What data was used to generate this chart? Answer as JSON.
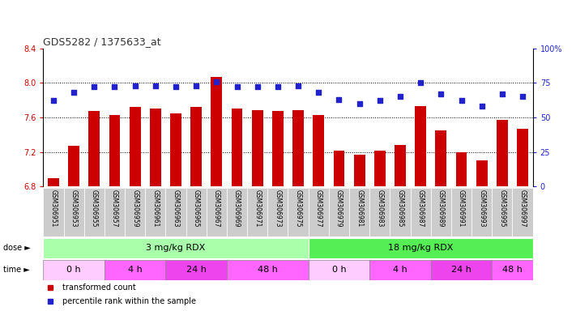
{
  "title": "GDS5282 / 1375633_at",
  "samples": [
    "GSM306951",
    "GSM306953",
    "GSM306955",
    "GSM306957",
    "GSM306959",
    "GSM306961",
    "GSM306963",
    "GSM306965",
    "GSM306967",
    "GSM306969",
    "GSM306971",
    "GSM306973",
    "GSM306975",
    "GSM306977",
    "GSM306979",
    "GSM306981",
    "GSM306983",
    "GSM306985",
    "GSM306987",
    "GSM306989",
    "GSM306991",
    "GSM306993",
    "GSM306995",
    "GSM306997"
  ],
  "bar_values": [
    6.9,
    7.27,
    7.67,
    7.63,
    7.72,
    7.7,
    7.65,
    7.72,
    8.07,
    7.7,
    7.68,
    7.67,
    7.68,
    7.63,
    7.22,
    7.17,
    7.22,
    7.28,
    7.73,
    7.45,
    7.2,
    7.1,
    7.57,
    7.47
  ],
  "percentile_values": [
    62,
    68,
    72,
    72,
    73,
    73,
    72,
    73,
    76,
    72,
    72,
    72,
    73,
    68,
    63,
    60,
    62,
    65,
    75,
    67,
    62,
    58,
    67,
    65
  ],
  "ymin": 6.8,
  "ymax": 8.4,
  "yticks_left": [
    6.8,
    7.2,
    7.6,
    8.0,
    8.4
  ],
  "yticks_right": [
    0,
    25,
    50,
    75,
    100
  ],
  "ytick_labels_right": [
    "0",
    "25",
    "50",
    "75",
    "100%"
  ],
  "bar_color": "#cc0000",
  "dot_color": "#2222cc",
  "dose_groups": [
    {
      "label": "3 mg/kg RDX",
      "start": 0,
      "end": 12,
      "color": "#aaffaa"
    },
    {
      "label": "18 mg/kg RDX",
      "start": 13,
      "end": 23,
      "color": "#55ee55"
    }
  ],
  "time_groups": [
    {
      "label": "0 h",
      "start": 0,
      "end": 2,
      "color": "#ffccff"
    },
    {
      "label": "4 h",
      "start": 3,
      "end": 5,
      "color": "#ff66ff"
    },
    {
      "label": "24 h",
      "start": 6,
      "end": 8,
      "color": "#ee44ee"
    },
    {
      "label": "48 h",
      "start": 9,
      "end": 12,
      "color": "#ff66ff"
    },
    {
      "label": "0 h",
      "start": 13,
      "end": 15,
      "color": "#ffccff"
    },
    {
      "label": "4 h",
      "start": 16,
      "end": 18,
      "color": "#ff66ff"
    },
    {
      "label": "24 h",
      "start": 19,
      "end": 21,
      "color": "#ee44ee"
    },
    {
      "label": "48 h",
      "start": 22,
      "end": 23,
      "color": "#ff66ff"
    }
  ],
  "legend_items": [
    {
      "label": "transformed count",
      "color": "#cc0000"
    },
    {
      "label": "percentile rank within the sample",
      "color": "#2222cc"
    }
  ],
  "names_bg_color": "#cccccc",
  "names_border_color": "#aaaaaa"
}
